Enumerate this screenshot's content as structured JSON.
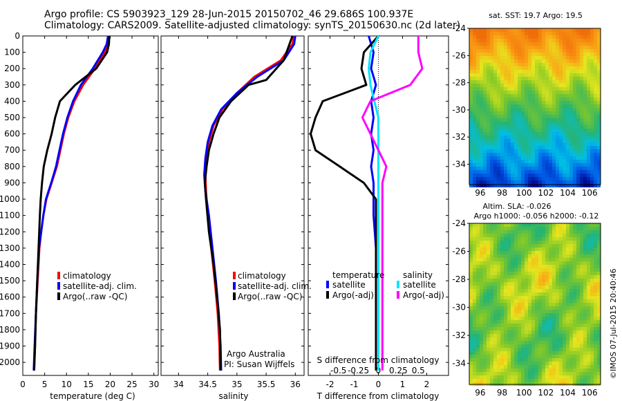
{
  "header": {
    "line1": "Argo profile: CS 5903923_129 28-Jun-2015 20150702_46 29.686S 100.937E",
    "line2": "Climatology: CARS2009. Satellite-adjusted climatology: synTS_20150630.nc (2d later)"
  },
  "stamp": "©IMOS 07-Jul-2015 20:40:46",
  "colors": {
    "climatology": "#ff0000",
    "satellite": "#0000ff",
    "argo": "#000000",
    "sal_satellite": "#00e5ff",
    "sal_argo": "#ff00ff"
  },
  "chart_data": [
    {
      "id": "temperature",
      "type": "line",
      "xlabel": "temperature (deg C)",
      "ylabel": "",
      "xlim": [
        0,
        31
      ],
      "ylim": [
        2080,
        0
      ],
      "xticks": [
        "0",
        "5",
        "10",
        "15",
        "20",
        "25",
        "30"
      ],
      "yticks": [
        "0",
        "100",
        "200",
        "300",
        "400",
        "500",
        "600",
        "700",
        "800",
        "900",
        "1000",
        "1100",
        "1200",
        "1300",
        "1400",
        "1500",
        "1600",
        "1700",
        "1800",
        "1900",
        "2000"
      ],
      "legend": [
        "climatology",
        "satellite-adj. clim.",
        "Argo(..raw -QC)"
      ],
      "series": [
        {
          "name": "climatology",
          "color": "#ff0000",
          "x": [
            19.6,
            19.5,
            18.8,
            16.5,
            13.8,
            11.8,
            10.4,
            9.4,
            8.6,
            7.8,
            6.6,
            5.4,
            4.7,
            4.2,
            3.8,
            3.4,
            3.0,
            2.8,
            2.6
          ],
          "y": [
            0,
            50,
            100,
            200,
            300,
            400,
            500,
            600,
            700,
            800,
            900,
            1000,
            1100,
            1200,
            1300,
            1500,
            1700,
            1900,
            2050
          ]
        },
        {
          "name": "satellite-adj. clim.",
          "color": "#0000ff",
          "x": [
            19.5,
            19.2,
            18.3,
            16.0,
            13.3,
            11.5,
            10.2,
            9.2,
            8.4,
            7.6,
            6.5,
            5.3,
            4.7,
            4.2,
            3.7,
            3.3,
            3.0,
            2.7,
            2.5
          ],
          "y": [
            0,
            50,
            100,
            200,
            300,
            400,
            500,
            600,
            700,
            800,
            900,
            1000,
            1100,
            1200,
            1300,
            1500,
            1700,
            1900,
            2050
          ]
        },
        {
          "name": "Argo(..raw -QC)",
          "color": "#000000",
          "x": [
            19.8,
            19.7,
            19.3,
            16.8,
            12.0,
            8.5,
            7.4,
            6.6,
            5.6,
            4.8,
            4.4,
            4.1,
            3.9,
            3.6,
            3.3,
            3.0,
            2.8,
            2.6
          ],
          "y": [
            0,
            50,
            100,
            200,
            300,
            400,
            500,
            600,
            700,
            800,
            900,
            1000,
            1100,
            1300,
            1500,
            1700,
            1900,
            2050
          ]
        }
      ]
    },
    {
      "id": "salinity",
      "type": "line",
      "xlabel": "salinity",
      "ylabel": "",
      "xlim": [
        33.7,
        36.15
      ],
      "ylim": [
        2080,
        0
      ],
      "xticks": [
        "34",
        "34.5",
        "35",
        "35.5",
        "36"
      ],
      "legend": [
        "climatology",
        "satellite-adj. clim.",
        "Argo(..raw -QC)"
      ],
      "annotations": [
        "Argo Australia",
        "PI: Susan Wijffels"
      ],
      "series": [
        {
          "name": "climatology",
          "color": "#ff0000",
          "x": [
            35.98,
            35.95,
            35.75,
            35.3,
            35.0,
            34.75,
            34.6,
            34.52,
            34.48,
            34.46,
            34.47,
            34.5,
            34.56,
            34.62,
            34.67,
            34.7,
            34.71
          ],
          "y": [
            0,
            50,
            150,
            250,
            350,
            450,
            550,
            650,
            750,
            850,
            950,
            1100,
            1300,
            1500,
            1700,
            1900,
            2050
          ]
        },
        {
          "name": "satellite-adj. clim.",
          "color": "#0000ff",
          "x": [
            36.0,
            35.98,
            35.8,
            35.35,
            35.0,
            34.73,
            34.58,
            34.5,
            34.46,
            34.44,
            34.46,
            34.52,
            34.58,
            34.64,
            34.69,
            34.72,
            34.73
          ],
          "y": [
            0,
            50,
            150,
            250,
            350,
            450,
            550,
            650,
            750,
            850,
            950,
            1100,
            1300,
            1500,
            1700,
            1900,
            2050
          ]
        },
        {
          "name": "Argo(..raw -QC)",
          "color": "#000000",
          "x": [
            35.95,
            35.9,
            35.8,
            35.5,
            35.2,
            34.9,
            34.7,
            34.6,
            34.52,
            34.48,
            34.45,
            34.47,
            34.52,
            34.6,
            34.66,
            34.71,
            34.72
          ],
          "y": [
            0,
            50,
            150,
            270,
            300,
            400,
            500,
            600,
            700,
            800,
            900,
            1000,
            1200,
            1400,
            1600,
            1800,
            2050
          ]
        }
      ]
    },
    {
      "id": "differences",
      "type": "line",
      "xlabel": "T difference from climatology",
      "xlabel2": "S difference from climatology",
      "xlim": [
        -2.9,
        2.9
      ],
      "ylim": [
        2080,
        0
      ],
      "xticks": [
        "-2",
        "-1",
        "0",
        "1",
        "2"
      ],
      "xticks2": [
        "-0.5",
        "-0.25",
        "0",
        "0.25",
        "0.5"
      ],
      "legend_headers": [
        "temperature",
        "salinity"
      ],
      "legend": [
        "satellite",
        "Argo(-adj)",
        "satellite",
        "Argo(-adj)"
      ],
      "series": [
        {
          "name": "temperature satellite",
          "color": "#0000ff",
          "x": [
            -0.4,
            -0.2,
            -0.3,
            -0.1,
            -0.3,
            -0.2,
            -0.3,
            -0.2,
            -0.3,
            -0.2,
            -0.2,
            -0.2,
            -0.1,
            -0.1,
            -0.1,
            -0.1,
            -0.1
          ],
          "y": [
            0,
            100,
            200,
            300,
            400,
            500,
            600,
            700,
            800,
            900,
            1000,
            1100,
            1300,
            1500,
            1700,
            1900,
            2050
          ]
        },
        {
          "name": "temperature Argo(-adj)",
          "color": "#000000",
          "x": [
            0,
            -0.6,
            -0.7,
            -0.5,
            -2.3,
            -2.6,
            -2.8,
            -2.6,
            -1.6,
            -0.6,
            -0.1,
            -0.1,
            -0.1,
            -0.1,
            -0.1,
            -0.1,
            -0.1
          ],
          "y": [
            0,
            100,
            200,
            300,
            400,
            500,
            600,
            700,
            800,
            900,
            1000,
            1100,
            1300,
            1500,
            1700,
            1900,
            2050
          ]
        },
        {
          "name": "salinity satellite",
          "color": "#00e5ff",
          "x": [
            0,
            -0.1,
            -0.12,
            -0.1,
            -0.05,
            0,
            0,
            0,
            0,
            0,
            0,
            0,
            0,
            0,
            0,
            0,
            0
          ],
          "y": [
            0,
            100,
            200,
            300,
            400,
            500,
            600,
            700,
            800,
            900,
            1000,
            1100,
            1300,
            1500,
            1700,
            1900,
            2050
          ]
        },
        {
          "name": "salinity Argo(-adj)",
          "color": "#ff00ff",
          "x": [
            0.5,
            0.5,
            0.55,
            0.4,
            -0.1,
            -0.2,
            -0.1,
            0,
            0.1,
            0.05,
            0.05,
            0.05,
            0.05,
            0.05,
            0.05,
            0.05,
            0.05
          ],
          "y": [
            0,
            100,
            200,
            300,
            400,
            500,
            600,
            700,
            800,
            900,
            1000,
            1100,
            1300,
            1500,
            1700,
            1900,
            2050
          ]
        }
      ]
    },
    {
      "id": "sst_map",
      "type": "heatmap",
      "title": "sat. SST: 19.7  Argo: 19.5",
      "xticks": [
        "96",
        "98",
        "100",
        "102",
        "104",
        "106"
      ],
      "yticks": [
        "-24",
        "-26",
        "-28",
        "-30",
        "-32",
        "-34"
      ],
      "xlim": [
        95,
        107
      ],
      "ylim": [
        -35.5,
        -24
      ]
    },
    {
      "id": "sla_map",
      "type": "heatmap",
      "title": "Altim. SLA: -0.026",
      "subtitle": "Argo h1000: -0.056 h2000: -0.12",
      "xticks": [
        "96",
        "98",
        "100",
        "102",
        "104",
        "106"
      ],
      "yticks": [
        "-24",
        "-26",
        "-28",
        "-30",
        "-32",
        "-34"
      ],
      "xlim": [
        95,
        107
      ],
      "ylim": [
        -35.5,
        -24
      ]
    }
  ]
}
